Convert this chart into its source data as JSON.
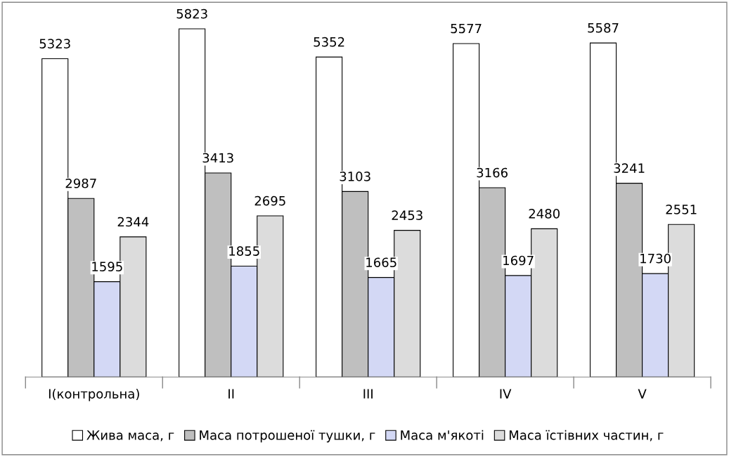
{
  "chart_data": {
    "type": "bar",
    "categories": [
      "I(контрольна)",
      "II",
      "III",
      "IV",
      "V"
    ],
    "series": [
      {
        "name": "Жива маса, г",
        "color": "#ffffff",
        "values": [
          5323,
          5823,
          5352,
          5577,
          5587
        ]
      },
      {
        "name": "Маса потрошеної тушки, г",
        "color": "#bfbfbf",
        "values": [
          2987,
          3413,
          3103,
          3166,
          3241
        ]
      },
      {
        "name": "Маса м'якоті",
        "color": "#d3d8f5",
        "values": [
          1595,
          1855,
          1665,
          1697,
          1730
        ]
      },
      {
        "name": "Маса їстівних частин, г",
        "color": "#dcdcdc",
        "values": [
          2344,
          2695,
          2453,
          2480,
          2551
        ]
      }
    ],
    "data_labels": true,
    "legend": "bottom",
    "grid": false
  }
}
